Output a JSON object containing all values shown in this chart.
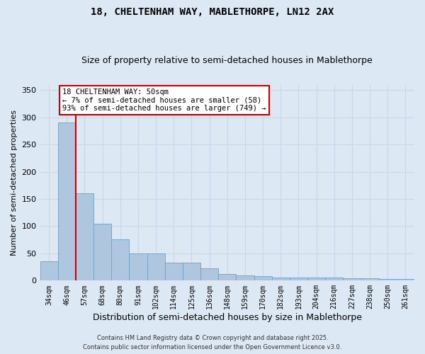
{
  "title1": "18, CHELTENHAM WAY, MABLETHORPE, LN12 2AX",
  "title2": "Size of property relative to semi-detached houses in Mablethorpe",
  "xlabel": "Distribution of semi-detached houses by size in Mablethorpe",
  "ylabel": "Number of semi-detached properties",
  "categories": [
    "34sqm",
    "46sqm",
    "57sqm",
    "68sqm",
    "80sqm",
    "91sqm",
    "102sqm",
    "114sqm",
    "125sqm",
    "136sqm",
    "148sqm",
    "159sqm",
    "170sqm",
    "182sqm",
    "193sqm",
    "204sqm",
    "216sqm",
    "227sqm",
    "238sqm",
    "250sqm",
    "261sqm"
  ],
  "values": [
    35,
    290,
    160,
    104,
    76,
    50,
    50,
    33,
    33,
    22,
    12,
    9,
    8,
    6,
    6,
    6,
    6,
    4,
    4,
    3,
    3
  ],
  "bar_color": "#aec6de",
  "bar_edge_color": "#6fa0c8",
  "property_line_x": 1.5,
  "property_sqm": 50,
  "pct_smaller": 7,
  "pct_larger": 93,
  "count_smaller": 58,
  "count_larger": 749,
  "annotation_box_facecolor": "#ffffff",
  "annotation_box_edgecolor": "#cc0000",
  "property_line_color": "#cc0000",
  "grid_color": "#c8d8e8",
  "background_color": "#dce8f4",
  "ylim": [
    0,
    360
  ],
  "yticks": [
    0,
    50,
    100,
    150,
    200,
    250,
    300,
    350
  ],
  "footer1": "Contains HM Land Registry data © Crown copyright and database right 2025.",
  "footer2": "Contains public sector information licensed under the Open Government Licence v3.0."
}
